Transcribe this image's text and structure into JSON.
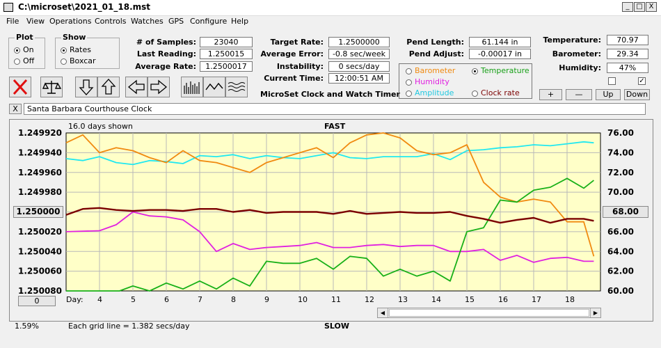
{
  "window": {
    "title": "C:\\microset\\2021_01_18.mst",
    "min": "_",
    "max": "□",
    "close": "X"
  },
  "menu": [
    "File",
    "View",
    "Operations",
    "Controls",
    "Watches",
    "GPS",
    "Configure",
    "Help"
  ],
  "plot_group": {
    "title": "Plot",
    "on": "On",
    "off": "Off",
    "selected": "On"
  },
  "show_group": {
    "title": "Show",
    "rates": "Rates",
    "boxcar": "Boxcar",
    "selected": "Rates"
  },
  "stats": {
    "samples_label": "# of Samples:",
    "samples": "23040",
    "last_label": "Last Reading:",
    "last": "1.250015",
    "avg_label": "Average Rate:",
    "avg": "1.2500017",
    "target_label": "Target Rate:",
    "target": "1.2500000",
    "err_label": "Average Error:",
    "err": "-0.8 sec/week",
    "inst_label": "Instability:",
    "inst": "0 secs/day",
    "time_label": "Current Time:",
    "time": "12:00:51 AM",
    "pend_len_label": "Pend Length:",
    "pend_len": "61.144 in",
    "pend_adj_label": "Pend Adjust:",
    "pend_adj": "-0.00017 in",
    "temp_label": "Temperature:",
    "temp": "70.97",
    "baro_label": "Barometer:",
    "baro": "29.34",
    "hum_label": "Humidity:",
    "hum": "47%"
  },
  "app_title": "MicroSet Clock and Watch Timer",
  "sensor_select": {
    "barometer": "Barometer",
    "temperature": "Temperature",
    "humidity": "Humidity",
    "amplitude": "Amplitude",
    "clock_rate": "Clock rate",
    "selected": "Temperature"
  },
  "sensor_buttons": {
    "plus": "+",
    "minus": "—",
    "up": "Up",
    "down": "Down"
  },
  "checkboxes": {
    "left": false,
    "right": true
  },
  "description": "Santa Barbara Courthouse Clock",
  "description_close": "X",
  "colors": {
    "clock_rate": "#7b0000",
    "temperature": "#18b018",
    "barometer": "#f08a10",
    "humidity": "#e020e0",
    "amplitude": "#20e8f0",
    "plot_bg": "#ffffc8"
  },
  "chart_data": {
    "type": "line",
    "top_label": "FAST",
    "bottom_label": "SLOW",
    "days_shown": "16.0 days shown",
    "grid_note": "Each grid line = 1.382 secs/day",
    "left_axis": {
      "ticks": [
        "1.249920",
        "1.249940",
        "1.249960",
        "1.249980",
        "1.250000",
        "1.250020",
        "1.250040",
        "1.250060",
        "1.250080"
      ],
      "center": "1.250000",
      "range": [
        1.24992,
        1.25008
      ],
      "inverted": true
    },
    "right_axis": {
      "ticks": [
        "76.00",
        "74.00",
        "72.00",
        "70.00",
        "68.00",
        "66.00",
        "64.00",
        "62.00",
        "60.00"
      ],
      "center": "68.00",
      "range": [
        60,
        76
      ]
    },
    "x_axis": {
      "label": "Day:",
      "ticks": [
        "4",
        "5",
        "6",
        "7",
        "8",
        "9",
        "10",
        "11",
        "12",
        "13",
        "14",
        "15",
        "16",
        "17",
        "18"
      ],
      "range": [
        3,
        19
      ]
    },
    "scroll_value": "0",
    "zoom": "1.59%",
    "series": [
      {
        "name": "Clock rate",
        "axis": "left",
        "x": [
          3.0,
          3.5,
          4.0,
          4.5,
          5.0,
          5.5,
          6.0,
          6.5,
          7.0,
          7.5,
          8.0,
          8.5,
          9.0,
          9.5,
          10.0,
          10.5,
          11.0,
          11.5,
          12.0,
          12.5,
          13.0,
          13.5,
          14.0,
          14.5,
          15.0,
          15.5,
          16.0,
          16.5,
          17.0,
          17.5,
          18.0,
          18.5,
          18.8
        ],
        "y": [
          1.250003,
          1.249997,
          1.249996,
          1.249998,
          1.249999,
          1.249998,
          1.249998,
          1.249999,
          1.249997,
          1.249997,
          1.25,
          1.249998,
          1.250001,
          1.25,
          1.25,
          1.25,
          1.250002,
          1.249999,
          1.250002,
          1.250001,
          1.25,
          1.250001,
          1.250001,
          1.25,
          1.250004,
          1.250007,
          1.250011,
          1.250008,
          1.250006,
          1.250011,
          1.250007,
          1.250007,
          1.250009
        ]
      },
      {
        "name": "Temperature",
        "axis": "right",
        "x": [
          3.0,
          4.0,
          4.6,
          5.0,
          5.5,
          6.0,
          6.5,
          7.0,
          7.5,
          8.0,
          8.5,
          9.0,
          9.5,
          10.0,
          10.5,
          11.0,
          11.5,
          12.0,
          12.5,
          13.0,
          13.5,
          14.0,
          14.5,
          15.0,
          15.5,
          16.0,
          16.5,
          17.0,
          17.5,
          18.0,
          18.5,
          18.8
        ],
        "y": [
          60.0,
          60.0,
          60.0,
          60.5,
          60.0,
          60.8,
          60.2,
          61.0,
          60.2,
          61.3,
          60.5,
          63.0,
          62.8,
          62.8,
          63.3,
          62.2,
          63.5,
          63.3,
          61.5,
          62.2,
          61.5,
          62.0,
          61.0,
          66.0,
          66.4,
          69.2,
          69.0,
          70.2,
          70.5,
          71.4,
          70.4,
          71.2
        ]
      },
      {
        "name": "Barometer",
        "axis": "right",
        "x": [
          3.0,
          3.5,
          4.0,
          4.5,
          5.0,
          5.5,
          6.0,
          6.5,
          7.0,
          7.5,
          8.0,
          8.5,
          9.0,
          9.5,
          10.0,
          10.5,
          11.0,
          11.5,
          12.0,
          12.5,
          13.0,
          13.5,
          14.0,
          14.5,
          15.0,
          15.5,
          16.0,
          16.5,
          17.0,
          17.5,
          18.0,
          18.5,
          18.8
        ],
        "y": [
          75.0,
          75.8,
          74.0,
          74.5,
          74.2,
          73.5,
          73.0,
          74.2,
          73.2,
          73.0,
          72.5,
          72.0,
          73.0,
          73.5,
          74.0,
          74.5,
          73.5,
          75.0,
          75.8,
          76.0,
          75.5,
          74.2,
          73.8,
          74.0,
          74.8,
          71.0,
          69.5,
          69.0,
          69.3,
          69.0,
          67.0,
          67.0,
          63.5
        ]
      },
      {
        "name": "Humidity",
        "axis": "left",
        "x": [
          3.0,
          4.0,
          4.5,
          5.0,
          5.5,
          6.0,
          6.5,
          7.0,
          7.5,
          8.0,
          8.5,
          9.0,
          9.5,
          10.0,
          10.5,
          11.0,
          11.5,
          12.0,
          12.5,
          13.0,
          13.5,
          14.0,
          14.5,
          15.0,
          15.5,
          16.0,
          16.5,
          17.0,
          17.5,
          18.0,
          18.5,
          18.8
        ],
        "y": [
          1.25002,
          1.250019,
          1.250013,
          1.25,
          1.250004,
          1.250005,
          1.250008,
          1.25002,
          1.25004,
          1.250032,
          1.250038,
          1.250036,
          1.250035,
          1.250034,
          1.250031,
          1.250036,
          1.250036,
          1.250034,
          1.250033,
          1.250035,
          1.250034,
          1.250034,
          1.25004,
          1.25004,
          1.250038,
          1.250049,
          1.250044,
          1.250051,
          1.250047,
          1.250046,
          1.25005,
          1.25005
        ]
      },
      {
        "name": "Amplitude",
        "axis": "left",
        "x": [
          3.0,
          3.5,
          4.0,
          4.5,
          5.0,
          5.5,
          6.0,
          6.5,
          7.0,
          7.5,
          8.0,
          8.5,
          9.0,
          9.5,
          10.0,
          10.5,
          11.0,
          11.5,
          12.0,
          12.5,
          13.0,
          13.5,
          14.0,
          14.5,
          15.0,
          15.5,
          16.0,
          16.5,
          17.0,
          17.5,
          18.0,
          18.5,
          18.8
        ],
        "y": [
          1.249946,
          1.249948,
          1.249944,
          1.24995,
          1.249952,
          1.249948,
          1.249949,
          1.249951,
          1.249943,
          1.249944,
          1.249942,
          1.249946,
          1.249943,
          1.249945,
          1.249946,
          1.249943,
          1.24994,
          1.249945,
          1.249946,
          1.249944,
          1.249944,
          1.249944,
          1.249941,
          1.249947,
          1.249938,
          1.249937,
          1.249935,
          1.249934,
          1.249932,
          1.249933,
          1.249931,
          1.249929,
          1.24993
        ]
      }
    ]
  }
}
